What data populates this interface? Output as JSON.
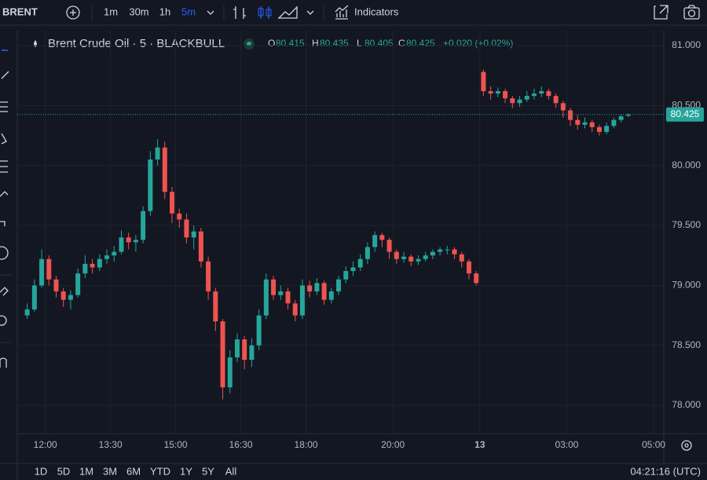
{
  "toolbar": {
    "symbol": "BRENT",
    "intervals": [
      "1m",
      "30m",
      "1h",
      "5m"
    ],
    "active_interval": 3,
    "indicators": "Indicators"
  },
  "ranges": [
    "1D",
    "5D",
    "1M",
    "3M",
    "6M",
    "YTD",
    "1Y",
    "5Y",
    "All"
  ],
  "clock": "04:21:16 (UTC)",
  "chart_data": {
    "type": "candlestick",
    "title": "Brent Crude Oil · 5 · BLACKBULL",
    "ohlc_labels": [
      "O",
      "H",
      "L",
      "C"
    ],
    "legend_change": "+0.020 (+0.02%)",
    "up_color": "#26a69a",
    "down_color": "#ef5350",
    "grid": true,
    "x": [
      0.5,
      1.5,
      2.5,
      3.5,
      4.5,
      5.5,
      6.5,
      7.5,
      8.5,
      9.5,
      10.5,
      11.5,
      12.5,
      13.5,
      14.5,
      15.5,
      16.5,
      17.5,
      18.5,
      19.5,
      20.5,
      21.5,
      22.5,
      23.5,
      24.5,
      25.5,
      26.5,
      27.5,
      28.5,
      29.5,
      30.5,
      31.5,
      32.5,
      33.5,
      34.5,
      35.5,
      36.5,
      37.5,
      38.5,
      39.5,
      40.5,
      41.5,
      42.5,
      43.5,
      44.5,
      45.5,
      46.5,
      47.5,
      48.5,
      49.5,
      50.5,
      51.5,
      52.5,
      53.5,
      54.5,
      55.5,
      56.5,
      57.5,
      58.5,
      59.5,
      60.5,
      61.5,
      62.5,
      63.5,
      64.5,
      65.5,
      66.5,
      67.5,
      68.5,
      69.5,
      70.5,
      71.5,
      72.5,
      73.5,
      74.5,
      75.5,
      76.5,
      77.5,
      78.5,
      79.5,
      80.5,
      81.5,
      82.5,
      83.5
    ],
    "open": [
      78.75,
      78.8,
      79.0,
      79.22,
      79.05,
      78.95,
      78.88,
      78.92,
      79.1,
      79.18,
      79.15,
      79.22,
      79.25,
      79.28,
      79.4,
      79.36,
      79.38,
      79.62,
      80.05,
      80.15,
      79.78,
      79.6,
      79.55,
      79.4,
      79.45,
      79.2,
      78.95,
      78.7,
      78.15,
      78.4,
      78.55,
      78.38,
      78.5,
      78.75,
      79.05,
      78.92,
      78.95,
      78.85,
      78.75,
      79.0,
      78.95,
      79.02,
      78.88,
      78.95,
      79.05,
      79.12,
      79.15,
      79.22,
      79.32,
      79.42,
      79.38,
      79.28,
      79.22,
      79.24,
      79.2,
      79.22,
      79.25,
      79.28,
      79.3,
      79.3,
      79.26,
      79.2,
      79.1,
      80.78,
      80.62,
      80.6,
      80.62,
      80.56,
      80.52,
      80.55,
      80.58,
      80.6,
      80.62,
      80.58,
      80.52,
      80.46,
      80.38,
      80.34,
      80.36,
      80.32,
      80.28,
      80.33,
      80.38,
      80.415
    ],
    "high": [
      78.85,
      79.05,
      79.3,
      79.25,
      79.08,
      78.98,
      78.96,
      79.14,
      79.25,
      79.22,
      79.26,
      79.3,
      79.33,
      79.46,
      79.44,
      79.42,
      79.66,
      80.12,
      80.22,
      80.2,
      79.82,
      79.64,
      79.6,
      79.5,
      79.48,
      79.24,
      78.98,
      78.72,
      78.46,
      78.6,
      78.58,
      78.56,
      78.8,
      79.1,
      79.08,
      79.0,
      78.98,
      78.88,
      79.05,
      79.04,
      79.06,
      79.04,
      78.98,
      79.08,
      79.16,
      79.2,
      79.26,
      79.36,
      79.45,
      79.44,
      79.4,
      79.3,
      79.28,
      79.26,
      79.25,
      79.28,
      79.3,
      79.32,
      79.33,
      79.32,
      79.28,
      79.22,
      79.12,
      80.8,
      80.66,
      80.65,
      80.64,
      80.58,
      80.58,
      80.62,
      80.64,
      80.66,
      80.64,
      80.6,
      80.54,
      80.48,
      80.42,
      80.4,
      80.38,
      80.34,
      80.36,
      80.4,
      80.43,
      80.435
    ],
    "low": [
      78.72,
      78.78,
      78.98,
      79.0,
      78.9,
      78.82,
      78.8,
      78.9,
      79.06,
      79.1,
      79.12,
      79.18,
      79.2,
      79.26,
      79.3,
      79.28,
      79.35,
      79.58,
      80.0,
      79.72,
      79.52,
      79.48,
      79.35,
      79.3,
      79.15,
      78.88,
      78.62,
      78.05,
      78.1,
      78.36,
      78.3,
      78.32,
      78.46,
      78.72,
      78.88,
      78.88,
      78.8,
      78.7,
      78.72,
      78.9,
      78.92,
      78.84,
      78.85,
      78.92,
      79.02,
      79.08,
      79.12,
      79.18,
      79.28,
      79.32,
      79.22,
      79.18,
      79.19,
      79.16,
      79.17,
      79.2,
      79.22,
      79.25,
      79.26,
      79.22,
      79.15,
      79.05,
      79.0,
      80.58,
      80.55,
      80.57,
      80.52,
      80.48,
      80.49,
      80.53,
      80.55,
      80.57,
      80.55,
      80.48,
      80.4,
      80.33,
      80.3,
      80.31,
      80.28,
      80.25,
      80.26,
      80.31,
      80.36,
      80.405
    ],
    "close": [
      78.8,
      79.0,
      79.22,
      79.05,
      78.95,
      78.88,
      78.92,
      79.1,
      79.18,
      79.15,
      79.22,
      79.25,
      79.28,
      79.4,
      79.36,
      79.38,
      79.62,
      80.05,
      80.15,
      79.78,
      79.6,
      79.55,
      79.4,
      79.45,
      79.2,
      78.95,
      78.7,
      78.15,
      78.4,
      78.55,
      78.38,
      78.5,
      78.75,
      79.05,
      78.92,
      78.95,
      78.85,
      78.75,
      79.0,
      78.95,
      79.02,
      78.88,
      78.95,
      79.05,
      79.12,
      79.15,
      79.22,
      79.32,
      79.42,
      79.38,
      79.28,
      79.22,
      79.24,
      79.2,
      79.22,
      79.25,
      79.28,
      79.3,
      79.3,
      79.26,
      79.2,
      79.1,
      79.02,
      80.62,
      80.6,
      80.62,
      80.56,
      80.52,
      80.55,
      80.58,
      80.6,
      80.62,
      80.58,
      80.52,
      80.46,
      80.38,
      80.34,
      80.36,
      80.32,
      80.28,
      80.33,
      80.38,
      80.41,
      80.425
    ],
    "xlim": [
      0,
      88.4
    ],
    "xticks": [
      {
        "value": 3,
        "label": "12:00"
      },
      {
        "value": 12,
        "label": "13:30"
      },
      {
        "value": 21,
        "label": "15:00"
      },
      {
        "value": 30,
        "label": "16:30"
      },
      {
        "value": 39,
        "label": "18:00"
      },
      {
        "value": 51,
        "label": "20:00"
      },
      {
        "value": 63,
        "label": "13"
      },
      {
        "value": 75,
        "label": "03:00"
      },
      {
        "value": 87,
        "label": "05:00"
      }
    ],
    "ylim": [
      77.81,
      81.118
    ],
    "yticks": [
      {
        "value": 78,
        "label": "78.000"
      },
      {
        "value": 78.5,
        "label": "78.500"
      },
      {
        "value": 79,
        "label": "79.000"
      },
      {
        "value": 79.5,
        "label": "79.500"
      },
      {
        "value": 80,
        "label": "80.000"
      },
      {
        "value": 80.5,
        "label": "80.500"
      },
      {
        "value": 81,
        "label": "81.000"
      }
    ]
  }
}
